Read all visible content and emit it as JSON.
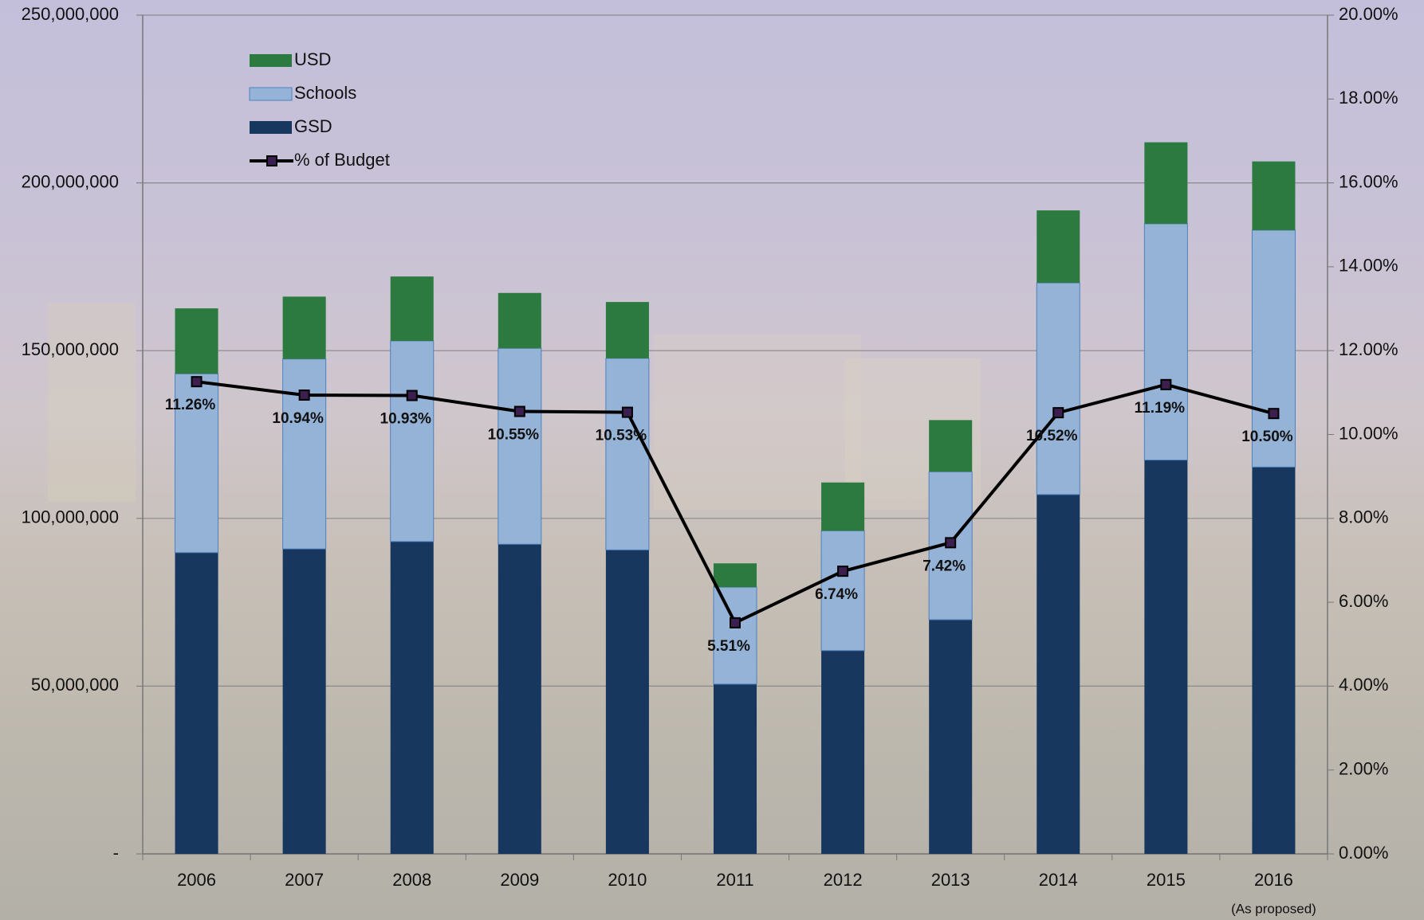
{
  "chart_data": {
    "type": "bar",
    "categories": [
      "2006",
      "2007",
      "2008",
      "2009",
      "2010",
      "2011",
      "2012",
      "2013",
      "2014",
      "2015",
      "2016"
    ],
    "x_annotation": "(As proposed)",
    "series": [
      {
        "name": "GSD",
        "color": "#17375e",
        "values": [
          89.8,
          90.9,
          93.1,
          92.3,
          90.6,
          50.6,
          60.6,
          69.8,
          107.1,
          117.4,
          115.3
        ]
      },
      {
        "name": "Schools",
        "color": "#95b3d7",
        "values": [
          53.3,
          56.6,
          59.8,
          58.4,
          57.1,
          28.9,
          35.7,
          44.1,
          63.1,
          70.4,
          70.6
        ]
      },
      {
        "name": "USD",
        "color": "#2c7a3f",
        "values": [
          19.5,
          18.6,
          19.2,
          16.5,
          16.8,
          7.1,
          14.4,
          15.4,
          21.6,
          24.3,
          20.5
        ]
      },
      {
        "name": "% of Budget",
        "type": "line",
        "axis": "y2",
        "color": "#000000",
        "marker_color": "#3b1f4f",
        "values": [
          11.26,
          10.94,
          10.93,
          10.55,
          10.53,
          5.51,
          6.74,
          7.42,
          10.52,
          11.19,
          10.5
        ],
        "value_labels": [
          "11.26%",
          "10.94%",
          "10.93%",
          "10.55%",
          "10.53%",
          "5.51%",
          "6.74%",
          "7.42%",
          "10.52%",
          "11.19%",
          "10.50%"
        ]
      }
    ],
    "ylim": [
      0,
      250
    ],
    "yticks": [
      {
        "value": 0,
        "label": "-"
      },
      {
        "value": 50,
        "label": "50,000,000"
      },
      {
        "value": 100,
        "label": "100,000,000"
      },
      {
        "value": 150,
        "label": "150,000,000"
      },
      {
        "value": 200,
        "label": "200,000,000"
      },
      {
        "value": 250,
        "label": "250,000,000"
      }
    ],
    "y2lim": [
      0,
      20
    ],
    "y2ticks": [
      {
        "value": 0,
        "label": "0.00%"
      },
      {
        "value": 2,
        "label": "2.00%"
      },
      {
        "value": 4,
        "label": "4.00%"
      },
      {
        "value": 6,
        "label": "6.00%"
      },
      {
        "value": 8,
        "label": "8.00%"
      },
      {
        "value": 10,
        "label": "10.00%"
      },
      {
        "value": 12,
        "label": "12.00%"
      },
      {
        "value": 14,
        "label": "14.00%"
      },
      {
        "value": 16,
        "label": "16.00%"
      },
      {
        "value": 18,
        "label": "18.00%"
      },
      {
        "value": 20,
        "label": "20.00%"
      }
    ],
    "grid": true,
    "legend": "upper left"
  }
}
